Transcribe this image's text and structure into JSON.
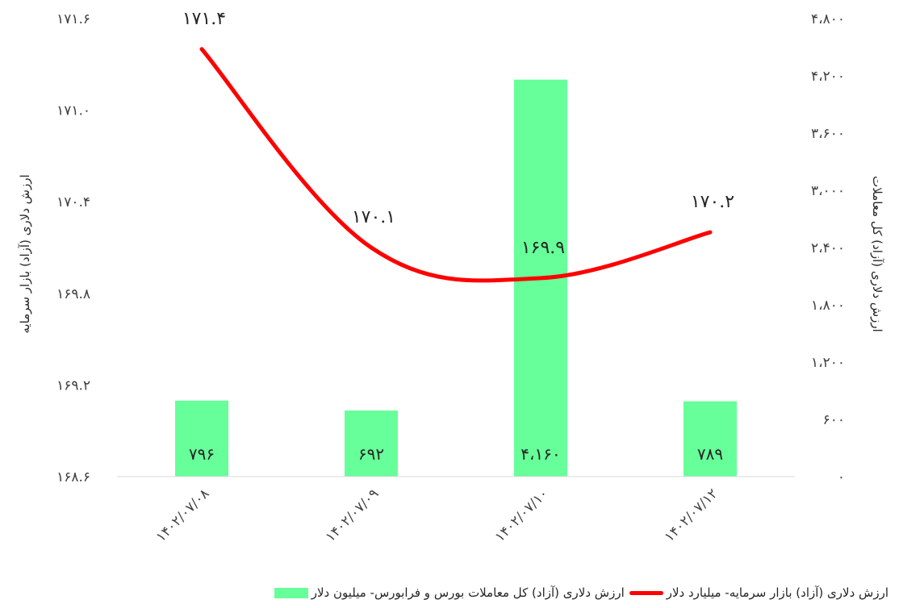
{
  "chart_data": {
    "type": "bar+line",
    "categories": [
      "۱۴۰۲/۰۷/۰۸",
      "۱۴۰۲/۰۷/۰۹",
      "۱۴۰۲/۰۷/۱۰",
      "۱۴۰۲/۰۷/۱۲"
    ],
    "series": [
      {
        "name": "ارزش دلاری (آزاد) کل معاملات بورس و فرابورس- میلیون دلار",
        "type": "bar",
        "axis": "right",
        "color": "#66ff99",
        "values": [
          796,
          692,
          4160,
          789
        ],
        "labels": [
          "۷۹۶",
          "۶۹۲",
          "۴،۱۶۰",
          "۷۸۹"
        ]
      },
      {
        "name": "ارزش دلاری (آزاد) بازار سرمایه- میلیارد دلار",
        "type": "line",
        "axis": "left",
        "color": "#ff0000",
        "values": [
          171.4,
          170.1,
          169.9,
          170.2
        ],
        "labels": [
          "۱۷۱.۴",
          "۱۷۰.۱",
          "۱۶۹.۹",
          "۱۷۰.۲"
        ]
      }
    ],
    "left_axis": {
      "title": "ارزش دلاری (آزاد) بازار سرمایه",
      "range": [
        168.6,
        171.6
      ],
      "ticks": [
        "۱۶۸.۶",
        "۱۶۹.۲",
        "۱۶۹.۸",
        "۱۷۰.۴",
        "۱۷۱.۰",
        "۱۷۱.۶"
      ]
    },
    "right_axis": {
      "title": "ارزش دلاری (آزاد) کل معاملات",
      "range": [
        0,
        4800
      ],
      "ticks": [
        "۰",
        "۶۰۰",
        "۱،۲۰۰",
        "۱،۸۰۰",
        "۲،۴۰۰",
        "۳،۰۰۰",
        "۳،۶۰۰",
        "۴،۲۰۰",
        "۴،۸۰۰"
      ]
    },
    "legend_position": "bottom",
    "grid": false
  },
  "legend": {
    "bar_label": "ارزش دلاری (آزاد) کل معاملات بورس و فرابورس- میلیون دلار",
    "line_label": "ارزش دلاری (آزاد) بازار سرمایه- میلیارد دلار"
  }
}
